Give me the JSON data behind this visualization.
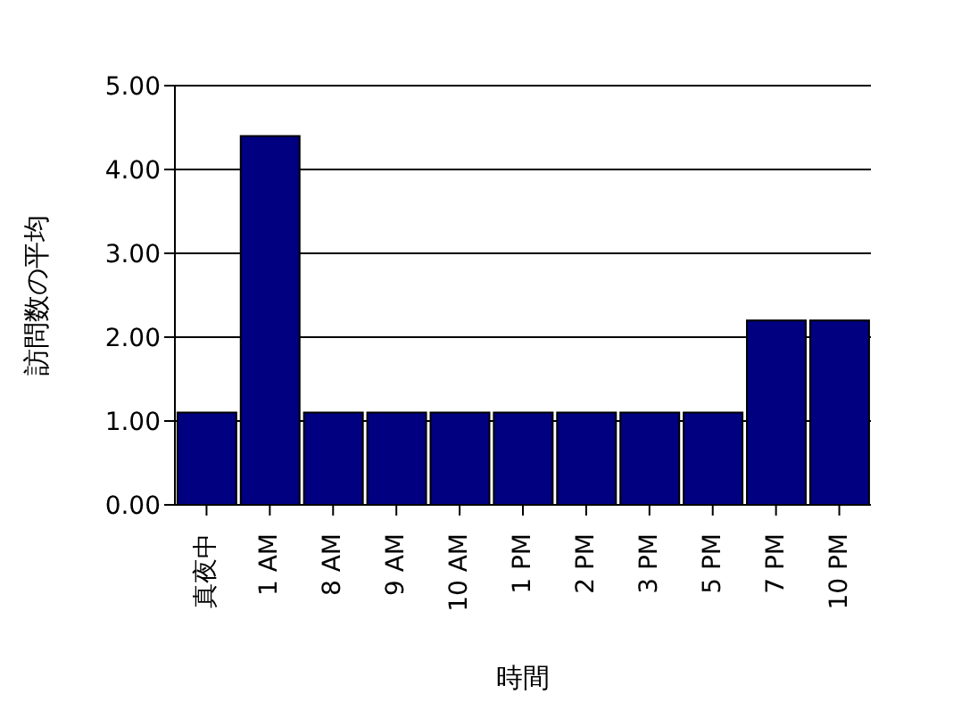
{
  "chart_data": {
    "type": "bar",
    "xlabel": "時間",
    "ylabel": "訪問数の平均",
    "categories": [
      "真夜中",
      "1 AM",
      "8 AM",
      "9 AM",
      "10 AM",
      "1 PM",
      "2 PM",
      "3 PM",
      "5 PM",
      "7 PM",
      "10 PM"
    ],
    "values": [
      1.1,
      4.4,
      1.1,
      1.1,
      1.1,
      1.1,
      1.1,
      1.1,
      1.1,
      2.2,
      2.2
    ],
    "color": "#000080",
    "ylim": [
      0,
      5
    ],
    "yticks": [
      {
        "value": 0,
        "label": "0.00"
      },
      {
        "value": 1,
        "label": "1.00"
      },
      {
        "value": 2,
        "label": "2.00"
      },
      {
        "value": 3,
        "label": "3.00"
      },
      {
        "value": 4,
        "label": "4.00"
      },
      {
        "value": 5,
        "label": "5.00"
      }
    ],
    "grid": "y",
    "legend": false
  }
}
